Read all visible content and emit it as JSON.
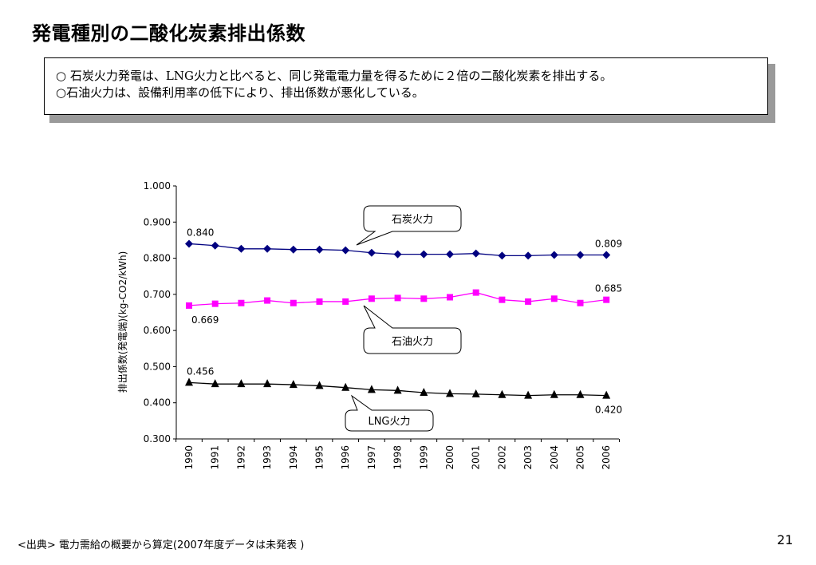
{
  "slide": {
    "title": "発電種別の二酸化炭素排出係数",
    "notes": [
      "○ 石炭火力発電は、LNG火力と比べると、同じ発電電力量を得るために２倍の二酸化炭素を排出する。",
      "○石油火力は、設備利用率の低下により、排出係数が悪化している。"
    ],
    "source": "<出典>  電力需給の概要から算定(2007年度データは未発表 )",
    "page_number": "21"
  },
  "chart_data": {
    "type": "line",
    "ylabel": "排出係数(発電端)(kg-CO2/kWh)",
    "xlabel": "",
    "ylim": [
      0.3,
      1.0
    ],
    "yticks": [
      "0.300",
      "0.400",
      "0.500",
      "0.600",
      "0.700",
      "0.800",
      "0.900",
      "1.000"
    ],
    "categories": [
      "1990",
      "1991",
      "1992",
      "1993",
      "1994",
      "1995",
      "1996",
      "1997",
      "1998",
      "1999",
      "2000",
      "2001",
      "2002",
      "2003",
      "2004",
      "2005",
      "2006"
    ],
    "series": [
      {
        "name": "石炭火力",
        "marker": "diamond",
        "color": "#000080",
        "values": [
          0.84,
          0.835,
          0.826,
          0.826,
          0.824,
          0.824,
          0.822,
          0.815,
          0.811,
          0.811,
          0.811,
          0.813,
          0.807,
          0.807,
          0.809,
          0.809,
          0.809
        ],
        "first_label": "0.840",
        "last_label": "0.809"
      },
      {
        "name": "石油火力",
        "marker": "square",
        "color": "#ff00ff",
        "values": [
          0.669,
          0.674,
          0.676,
          0.683,
          0.676,
          0.68,
          0.68,
          0.688,
          0.69,
          0.688,
          0.692,
          0.705,
          0.685,
          0.68,
          0.688,
          0.676,
          0.685
        ],
        "first_label": "0.669",
        "last_label": "0.685"
      },
      {
        "name": "LNG火力",
        "marker": "triangle",
        "color": "#000000",
        "values": [
          0.456,
          0.452,
          0.452,
          0.452,
          0.45,
          0.447,
          0.442,
          0.436,
          0.434,
          0.428,
          0.425,
          0.424,
          0.422,
          0.42,
          0.422,
          0.422,
          0.42
        ],
        "first_label": "0.456",
        "last_label": "0.420"
      }
    ],
    "callouts": [
      "石炭火力",
      "石油火力",
      "LNG火力"
    ],
    "grid": false,
    "legend": "none"
  }
}
